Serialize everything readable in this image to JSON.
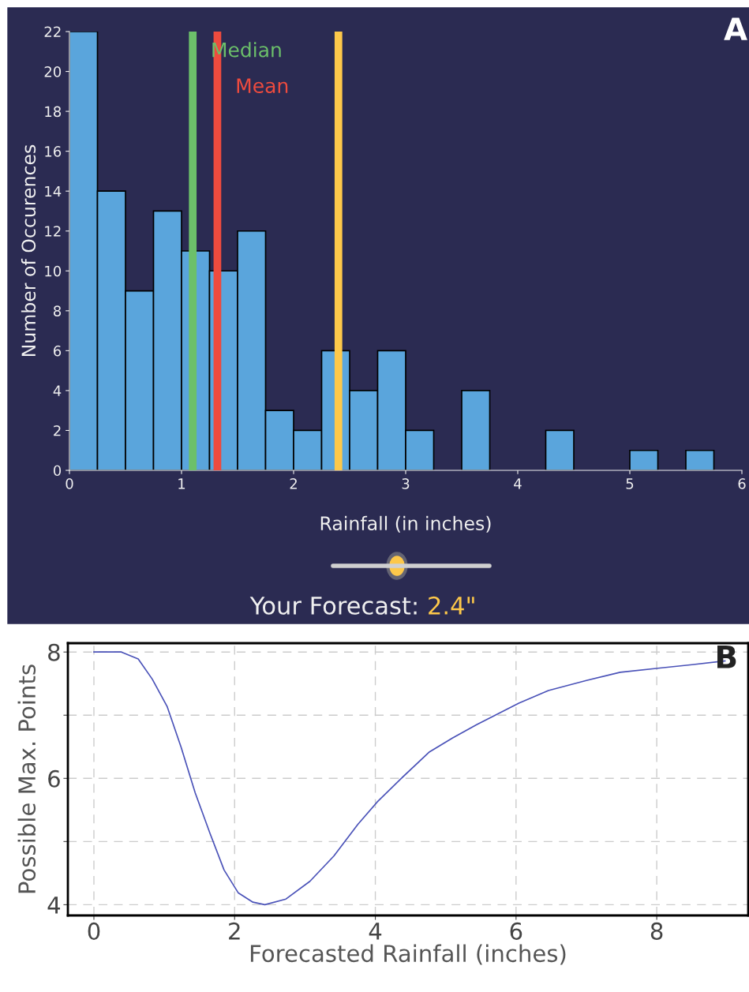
{
  "chart_data": [
    {
      "type": "histogram",
      "xlabel": "Rainfall (in inches)",
      "ylabel": "Number of Occurences",
      "bins": [
        0,
        0.25,
        0.5,
        0.75,
        1,
        1.25,
        1.5,
        1.75,
        2,
        2.25,
        2.5,
        2.75,
        3,
        3.25,
        3.5,
        3.75,
        4,
        4.25,
        4.5,
        4.75,
        5,
        5.25,
        5.5,
        5.75
      ],
      "values": [
        22,
        14,
        9,
        13,
        11,
        10,
        12,
        3,
        2,
        6,
        4,
        6,
        2,
        0,
        4,
        0,
        0,
        2,
        0,
        0,
        1,
        0,
        1
      ],
      "color": "#5aa5dc",
      "xlim": [
        0,
        6
      ],
      "xticks": [
        0,
        1,
        2,
        3,
        4,
        5,
        6
      ],
      "ylim": [
        0,
        22
      ],
      "yticks": [
        0,
        2,
        4,
        6,
        8,
        10,
        12,
        14,
        16,
        18,
        20,
        22
      ],
      "ref_lines": [
        {
          "axis": "x",
          "value": 1.1,
          "label": "Median",
          "color": "#6cc06a"
        },
        {
          "axis": "x",
          "value": 1.32,
          "label": "Mean",
          "color": "#ee4b3e"
        },
        {
          "axis": "x",
          "value": 2.4,
          "label": null,
          "color": "#fdc84a"
        }
      ],
      "annotations": [
        "A",
        "Your Forecast:",
        "2.4\""
      ],
      "grid": false
    },
    {
      "type": "line",
      "xlabel": "Forecasted Rainfall (inches)",
      "ylabel": "Possible Max. Points",
      "x": [
        0,
        0.39,
        0.63,
        0.83,
        1.04,
        1.24,
        1.44,
        1.65,
        1.85,
        2.05,
        2.26,
        2.43,
        2.73,
        3.07,
        3.41,
        3.75,
        4.03,
        4.36,
        4.77,
        5.1,
        5.44,
        6.04,
        6.46,
        7.0,
        7.48,
        8.07,
        8.5,
        8.97
      ],
      "series": [
        {
          "color": "#4a52b8",
          "values": [
            8,
            8,
            7.89,
            7.57,
            7.14,
            6.49,
            5.77,
            5.13,
            4.55,
            4.19,
            4.04,
            4.0,
            4.09,
            4.37,
            4.77,
            5.27,
            5.63,
            5.99,
            6.42,
            6.64,
            6.85,
            7.19,
            7.39,
            7.55,
            7.68,
            7.75,
            7.8,
            7.86
          ]
        }
      ],
      "xlim": [
        -0.37,
        9.3
      ],
      "xticks": [
        0,
        2,
        4,
        6,
        8
      ],
      "ylim": [
        3.83,
        8.14
      ],
      "yticks": [
        4,
        {
          "value": 5,
          "label": null
        },
        6,
        {
          "value": 7,
          "label": null
        },
        8
      ],
      "annotations": [
        "B"
      ],
      "grid": true
    }
  ]
}
